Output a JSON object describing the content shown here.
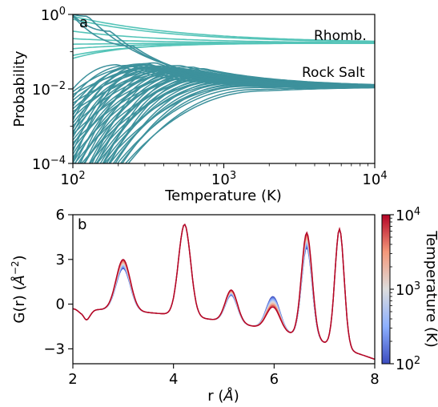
{
  "chart_data": [
    {
      "type": "line",
      "panel_label": "a",
      "xlabel": "Temperature (K)",
      "ylabel": "Probability",
      "xscale": "log",
      "yscale": "log",
      "xlim": [
        100,
        10000
      ],
      "ylim": [
        0.0001,
        1
      ],
      "x_ticks": [
        {
          "value": 100,
          "base": "10",
          "exp": "2"
        },
        {
          "value": 1000,
          "base": "10",
          "exp": "3"
        },
        {
          "value": 10000,
          "base": "10",
          "exp": "4"
        }
      ],
      "y_ticks": [
        {
          "value": 1,
          "base": "10",
          "exp": "0"
        },
        {
          "value": 0.01,
          "base": "10",
          "exp": "−2"
        },
        {
          "value": 0.0001,
          "base": "10",
          "exp": "−4"
        }
      ],
      "annotations": [
        "Rhomb.",
        "Rock Salt"
      ],
      "groups": [
        {
          "name": "Rhomb.",
          "color": "#54c4b8",
          "limit": 0.17,
          "curves": [
            {
              "log_p100": -0.05,
              "tau": 0.75
            },
            {
              "log_p100": -0.13,
              "tau": 0.7
            },
            {
              "log_p100": -0.45,
              "tau": 0.62
            },
            {
              "log_p100": -0.65,
              "tau": 0.55
            },
            {
              "log_p100": -0.8,
              "tau": 0.5
            },
            {
              "log_p100": -0.92,
              "tau": 0.45
            },
            {
              "log_p100": -1.1,
              "tau": 0.4
            },
            {
              "log_p100": -1.18,
              "tau": 0.35
            }
          ]
        },
        {
          "name": "Rock Salt",
          "color": "#3d919c",
          "limit": 0.0115,
          "curves": [
            {
              "log_p100": 0.0,
              "peak_logT": 2.1,
              "peak_logp": -0.05,
              "tau": 0.45
            },
            {
              "log_p100": -0.02,
              "peak_logT": 2.25,
              "peak_logp": -0.45,
              "tau": 0.4
            },
            {
              "log_p100": -0.05,
              "peak_logT": 2.4,
              "peak_logp": -0.85,
              "tau": 0.38
            },
            {
              "log_p100": -2.7,
              "peak_logT": 2.45,
              "peak_logp": -1.33,
              "tau": 0.4
            },
            {
              "log_p100": -3.2,
              "peak_logT": 2.5,
              "peak_logp": -1.32,
              "tau": 0.42
            },
            {
              "log_p100": -4.0,
              "peak_logT": 2.55,
              "peak_logp": -1.3,
              "tau": 0.45
            }
          ],
          "dense_band": {
            "count": 60,
            "log_p100_range": [
              -2.0,
              -6.5
            ],
            "peak_logp_range": [
              -1.35,
              -2.2
            ],
            "peak_logT_range": [
              2.3,
              3.4
            ]
          }
        }
      ]
    },
    {
      "type": "line",
      "panel_label": "b",
      "xlabel": "r (Å)",
      "ylabel": "G(r) (Å−2)",
      "xlim": [
        2,
        8
      ],
      "ylim": [
        -4,
        6
      ],
      "x_ticks": [
        "2",
        "4",
        "6",
        "8"
      ],
      "y_ticks": [
        "6",
        "3",
        "0",
        "−3"
      ],
      "colorbar": {
        "label": "Temperature (K)",
        "scale": "log",
        "range": [
          100,
          10000
        ],
        "ticks": [
          {
            "value": 10000,
            "base": "10",
            "exp": "4"
          },
          {
            "value": 1000,
            "base": "10",
            "exp": "3"
          },
          {
            "value": 100,
            "base": "10",
            "exp": "2"
          }
        ],
        "colors": [
          "#3b4cc0",
          "#8db0fe",
          "#dddddd",
          "#f4987a",
          "#b40426"
        ]
      },
      "baseline": {
        "r_start": 2.0,
        "value_start": -0.3,
        "value_end": -3.7
      },
      "peaks": [
        {
          "r": 2.2,
          "height": -0.1,
          "width": 0.06
        },
        {
          "r": 3.0,
          "height_low": 2.4,
          "height_high": 3.0,
          "width": 0.2
        },
        {
          "r": 4.22,
          "height_low": 5.35,
          "height_high": 5.35,
          "width": 0.17
        },
        {
          "r": 5.15,
          "height_low": 0.6,
          "height_high": 0.95,
          "width": 0.17
        },
        {
          "r": 5.98,
          "height_low": 0.5,
          "height_high": -0.2,
          "width": 0.19
        },
        {
          "r": 6.65,
          "height_low": 3.8,
          "height_high": 4.8,
          "width": 0.15
        },
        {
          "r": 7.3,
          "height_low": 5.0,
          "height_high": 5.05,
          "width": 0.13
        }
      ],
      "series_temperatures": [
        100,
        150,
        200,
        300,
        500,
        800,
        1200,
        2000,
        3500,
        6000,
        10000
      ]
    }
  ]
}
